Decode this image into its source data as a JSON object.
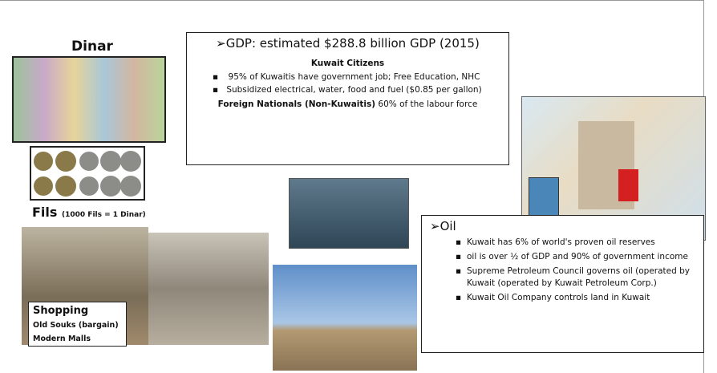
{
  "dinar": {
    "title": "Dinar"
  },
  "fils": {
    "title": "Fils",
    "note": "(1000 Fils = 1 Dinar)"
  },
  "shopping": {
    "title": "Shopping",
    "items": [
      "Old Souks (bargain)",
      "Modern Malls"
    ]
  },
  "gdp": {
    "title": "➢GDP: estimated $288.8 billion GDP (2015)",
    "subtitle": "Kuwait Citizens",
    "bullets": [
      "95% of Kuwaitis have government job; Free Education, NHC",
      "Subsidized electrical, water, food and fuel ($0.85 per gallon)"
    ],
    "foreign": {
      "bold": "Foreign Nationals (Non-Kuwaitis)",
      "text": "60% of the labour force"
    }
  },
  "oil": {
    "title": "➢Oil",
    "bullets": [
      "Kuwait has 6% of world's proven oil reserves",
      "oil is over ½ of GDP and 90% of government income",
      "Supreme Petroleum Council governs oil (operated by Kuwait (operated by Kuwait Petroleum Corp.)",
      "Kuwait Oil Company controls land in Kuwait"
    ]
  }
}
